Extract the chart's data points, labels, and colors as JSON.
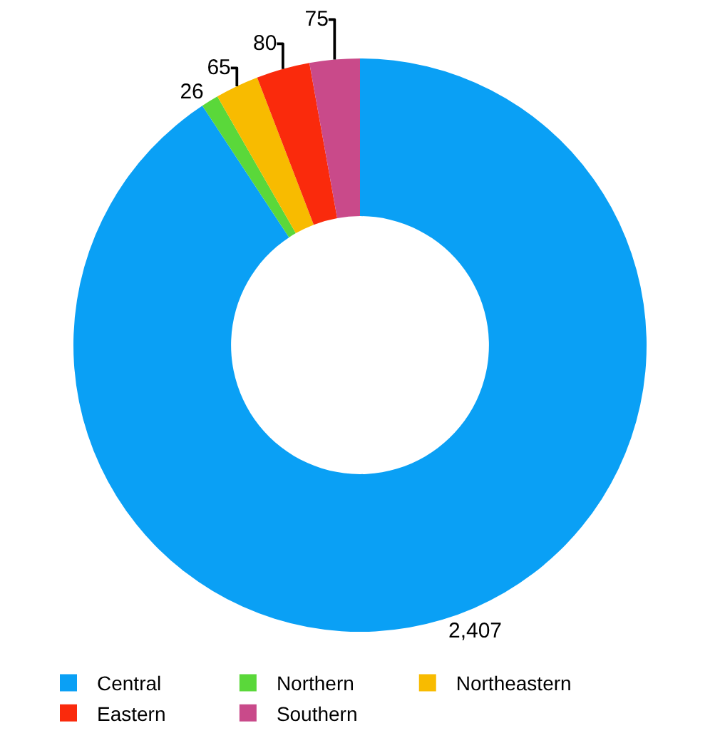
{
  "chart_data": {
    "type": "donut",
    "categories": [
      "Central",
      "Northern",
      "Northeastern",
      "Eastern",
      "Southern"
    ],
    "values": [
      2407,
      26,
      65,
      80,
      75
    ],
    "colors": [
      "#0aa0f5",
      "#5ad83a",
      "#f8bb00",
      "#fa2a0c",
      "#c94a8a"
    ],
    "value_labels": [
      "2,407",
      "26",
      "65",
      "80",
      "75"
    ],
    "legend": "bottom"
  }
}
